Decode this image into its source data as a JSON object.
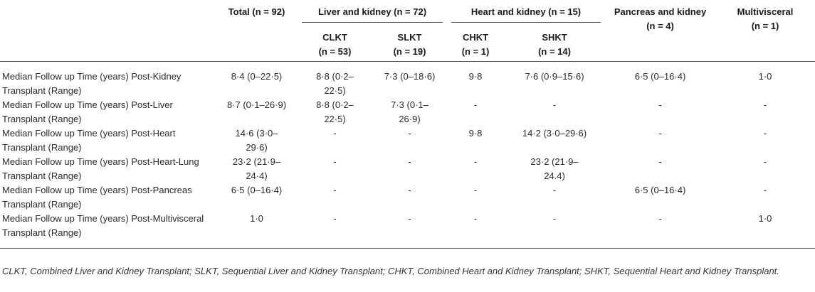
{
  "table": {
    "header_top": {
      "total": "Total (n = 92)",
      "liver_kidney": "Liver and kidney (n = 72)",
      "heart_kidney": "Heart and kidney (n = 15)",
      "pancreas_kidney": "Pancreas and kidney (n = 4)",
      "multivisceral": "Multivisceral (n = 1)"
    },
    "header_sub": [
      {
        "label": "CLKT",
        "n": "(n = 53)"
      },
      {
        "label": "SLKT",
        "n": "(n = 19)"
      },
      {
        "label": "CHKT",
        "n": "(n = 1)"
      },
      {
        "label": "SHKT",
        "n": "(n = 14)"
      }
    ],
    "rows": [
      {
        "label": "Median Follow up Time (years) Post-Kidney Transplant (Range)",
        "total": "8·4 (0–22·5)",
        "clkt": "8·8 (0·2–22·5)",
        "slkt": "7·3 (0–18·6)",
        "chkt": "9·8",
        "shkt": "7·6 (0·9–15·6)",
        "pancreas": "6·5 (0–16·4)",
        "multi": "1·0"
      },
      {
        "label": "Median Follow up Time (years) Post-Liver Transplant (Range)",
        "total": "8·7 (0·1–26·9)",
        "clkt": "8·8 (0·2–22·5)",
        "slkt": "7·3 (0·1–26·9)",
        "chkt": "-",
        "shkt": "-",
        "pancreas": "-",
        "multi": "-"
      },
      {
        "label": "Median Follow up Time (years) Post-Heart Transplant (Range)",
        "total": "14·6 (3·0–29·6)",
        "clkt": "-",
        "slkt": "-",
        "chkt": "9·8",
        "shkt": "14·2 (3·0–29·6)",
        "pancreas": "-",
        "multi": "-"
      },
      {
        "label": "Median Follow up Time (years) Post-Heart-Lung Transplant (Range)",
        "total": "23·2 (21·9–24·4)",
        "clkt": "-",
        "slkt": "-",
        "chkt": "-",
        "shkt": "23·2 (21·9–24.4)",
        "pancreas": "-",
        "multi": "-"
      },
      {
        "label": "Median Follow up Time (years) Post-Pancreas Transplant (Range)",
        "total": "6·5 (0–16·4)",
        "clkt": "-",
        "slkt": "-",
        "chkt": "-",
        "shkt": "-",
        "pancreas": "6·5 (0–16·4)",
        "multi": "-"
      },
      {
        "label": "Median Follow up Time (years) Post-Multivisceral Transplant (Range)",
        "total": "1·0",
        "clkt": "-",
        "slkt": "-",
        "chkt": "-",
        "shkt": "-",
        "pancreas": "-",
        "multi": "1·0"
      }
    ]
  },
  "footnote": "CLKT, Combined Liver and Kidney Transplant; SLKT, Sequential Liver and Kidney Transplant; CHKT, Combined Heart and Kidney Transplant; SHKT, Sequential Heart and Kidney Transplant.",
  "colors": {
    "text": "#222222",
    "rule": "#555555",
    "background": "#ffffff"
  }
}
